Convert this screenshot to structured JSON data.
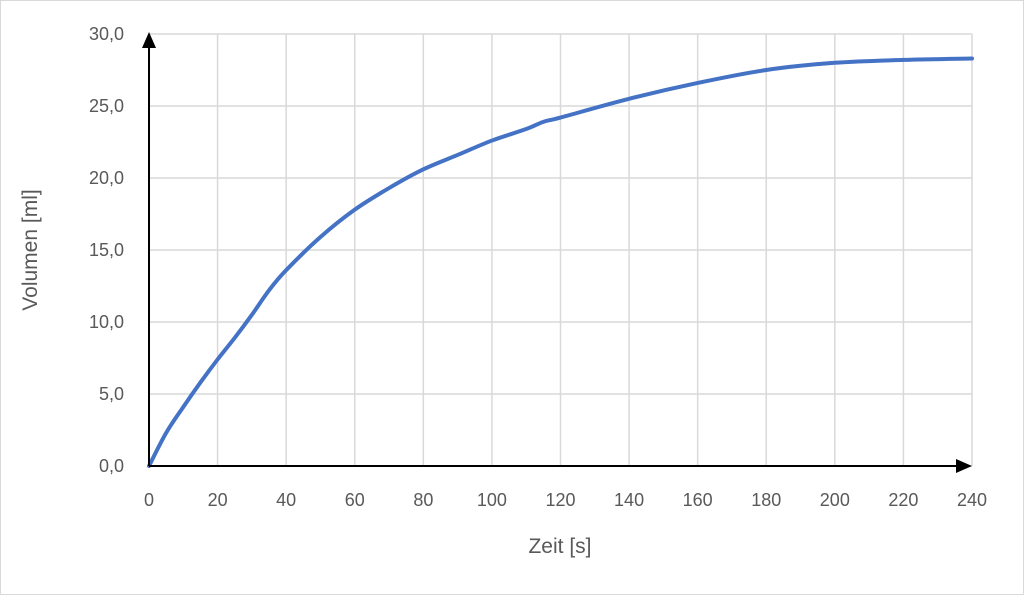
{
  "chart_data": {
    "type": "line",
    "title": "",
    "xlabel": "Zeit [s]",
    "ylabel": "Volumen [ml]",
    "xlim": [
      0,
      240
    ],
    "ylim": [
      0,
      30
    ],
    "grid": true,
    "x_ticks": [
      "0",
      "20",
      "40",
      "60",
      "80",
      "100",
      "120",
      "140",
      "160",
      "180",
      "200",
      "220",
      "240"
    ],
    "y_ticks": [
      "0,0",
      "5,0",
      "10,0",
      "15,0",
      "20,0",
      "25,0",
      "30,0"
    ],
    "series": [
      {
        "name": "Volumen",
        "color": "#4472C4",
        "x": [
          0,
          5,
          10,
          15,
          20,
          25,
          30,
          35,
          40,
          50,
          60,
          70,
          80,
          90,
          100,
          110,
          115,
          120,
          140,
          160,
          180,
          200,
          220,
          240
        ],
        "y": [
          0,
          2.3,
          4.1,
          5.8,
          7.4,
          8.9,
          10.5,
          12.2,
          13.6,
          15.9,
          17.8,
          19.3,
          20.6,
          21.6,
          22.6,
          23.4,
          23.9,
          24.2,
          25.5,
          26.6,
          27.5,
          28.0,
          28.2,
          28.3
        ]
      }
    ]
  },
  "colors": {
    "line": "#4472C4",
    "grid": "#d9d9d9",
    "axis": "#000000"
  }
}
